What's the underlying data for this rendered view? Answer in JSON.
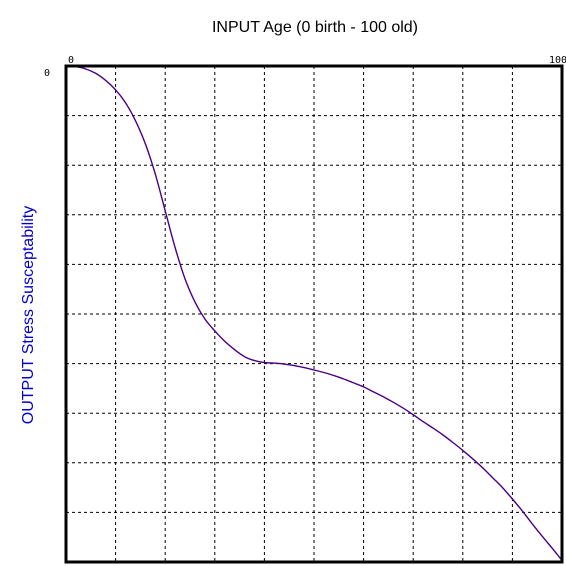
{
  "chart_data": {
    "type": "line",
    "title": "INPUT Age (0 birth - 100 old)",
    "xlabel": "INPUT Age (0 birth - 100 old)",
    "ylabel": "OUTPUT Stress Susceptability",
    "xlim": [
      0,
      100
    ],
    "ylim": [
      0,
      100
    ],
    "y_inverted": true,
    "x_tick_labels": [
      {
        "value": 0,
        "label": "0"
      },
      {
        "value": 100,
        "label": "100"
      }
    ],
    "y_tick_labels": [
      {
        "value": 0,
        "label": "0"
      }
    ],
    "grid": true,
    "grid_divisions": 10,
    "series": [
      {
        "values_x": [
          0,
          2,
          4,
          6,
          8,
          10,
          12,
          14,
          16,
          18,
          20,
          22,
          24,
          26,
          28,
          30,
          32,
          34,
          36,
          38,
          40,
          42,
          44,
          46,
          48,
          50,
          52,
          54,
          56,
          58,
          60,
          62,
          64,
          66,
          68,
          70,
          72,
          74,
          76,
          78,
          80,
          82,
          84,
          86,
          88,
          90,
          92,
          94,
          96,
          98,
          100
        ],
        "values_y": [
          0.0,
          0.1,
          0.6,
          1.5,
          2.9,
          4.8,
          7.4,
          11.0,
          15.7,
          21.8,
          29.2,
          36.6,
          42.9,
          47.6,
          51.0,
          53.4,
          55.5,
          57.2,
          58.6,
          59.4,
          59.8,
          59.9,
          60.1,
          60.4,
          60.8,
          61.3,
          61.8,
          62.4,
          63.1,
          63.9,
          64.7,
          65.7,
          66.7,
          67.8,
          69.0,
          70.3,
          71.7,
          73.0,
          74.4,
          75.9,
          77.5,
          79.2,
          81.0,
          83.0,
          85.0,
          87.3,
          89.7,
          92.3,
          94.8,
          97.2,
          99.7
        ],
        "color": "#4B0082"
      }
    ],
    "colors": {
      "curve": "#4B0082",
      "ylabel": "#0000CC",
      "frame": "#000000",
      "grid": "#000000"
    }
  }
}
